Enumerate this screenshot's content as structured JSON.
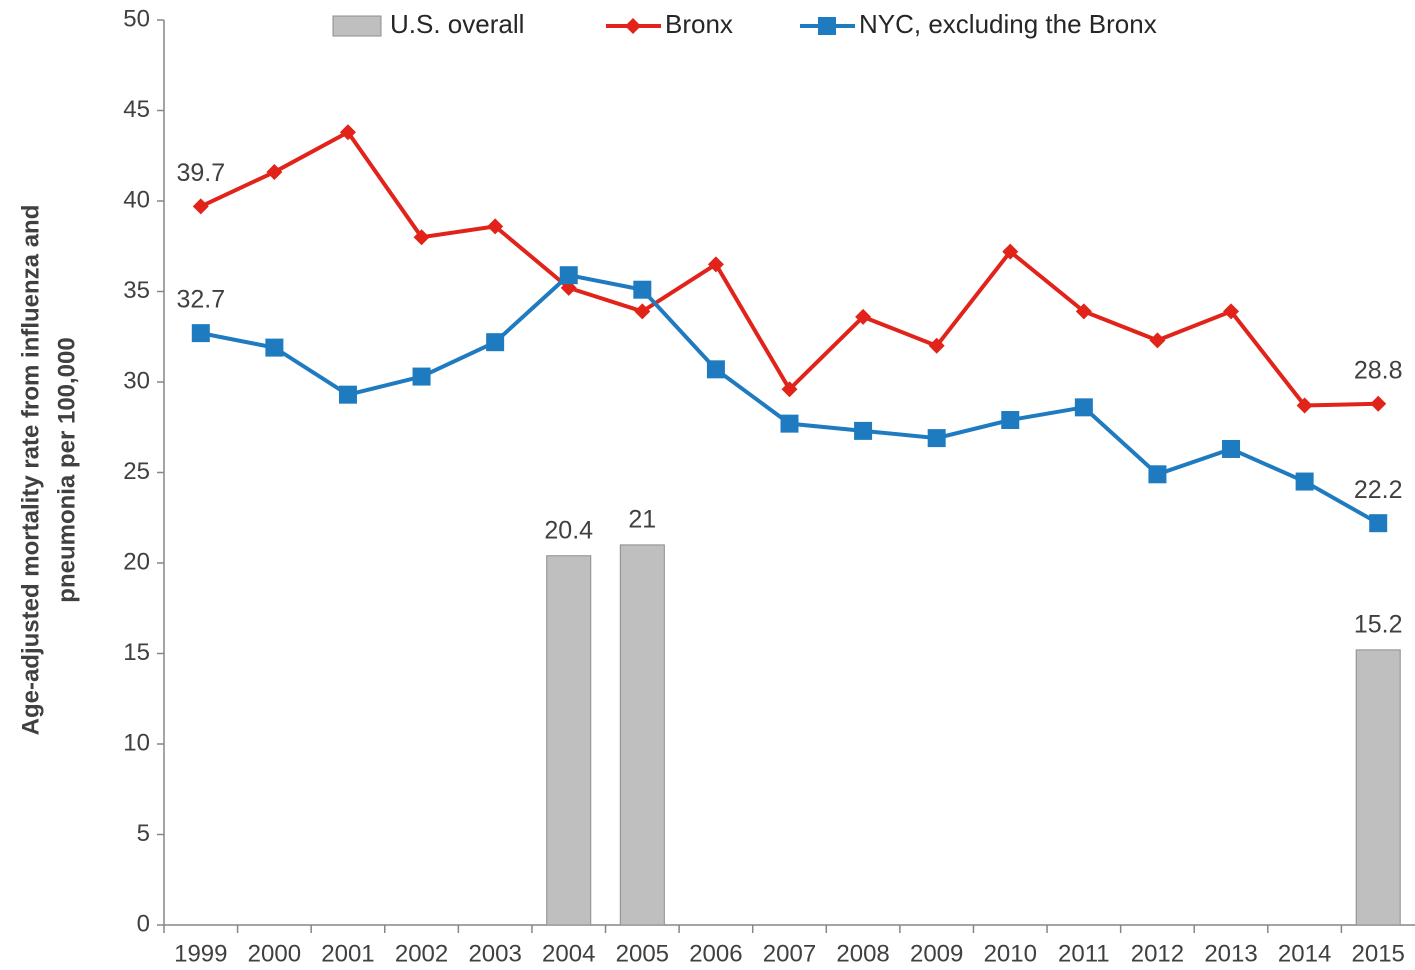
{
  "chart_data": {
    "type": "bar_line",
    "y_label": [
      "Age-adjusted mortality rate from influenza and",
      "pneumonia per 100,000"
    ],
    "categories": [
      "1999",
      "2000",
      "2001",
      "2002",
      "2003",
      "2004",
      "2005",
      "2006",
      "2007",
      "2008",
      "2009",
      "2010",
      "2011",
      "2012",
      "2013",
      "2014",
      "2015"
    ],
    "series": [
      {
        "name": "U.S. overall",
        "type": "bar",
        "color": "#bfbfbf",
        "values": [
          null,
          null,
          null,
          null,
          null,
          20.4,
          21,
          null,
          null,
          null,
          null,
          null,
          null,
          null,
          null,
          null,
          15.2
        ],
        "value_labels": [
          null,
          null,
          null,
          null,
          null,
          "20.4",
          "21",
          null,
          null,
          null,
          null,
          null,
          null,
          null,
          null,
          null,
          "15.2"
        ]
      },
      {
        "name": "Bronx",
        "type": "line",
        "marker": "diamond",
        "color": "#e2231a",
        "values": [
          39.7,
          41.6,
          43.8,
          38.0,
          38.6,
          35.2,
          33.9,
          36.5,
          29.6,
          33.6,
          32.0,
          37.2,
          33.9,
          32.3,
          33.9,
          28.7,
          28.8
        ],
        "value_labels": [
          "39.7",
          null,
          null,
          null,
          null,
          null,
          null,
          null,
          null,
          null,
          null,
          null,
          null,
          null,
          null,
          null,
          "28.8"
        ]
      },
      {
        "name": "NYC, excluding the Bronx",
        "type": "line",
        "marker": "square",
        "color": "#1f7bbf",
        "values": [
          32.7,
          31.9,
          29.3,
          30.3,
          32.2,
          35.9,
          35.1,
          30.7,
          27.7,
          27.3,
          26.9,
          27.9,
          28.6,
          24.9,
          26.3,
          24.5,
          22.2
        ],
        "value_labels": [
          "32.7",
          null,
          null,
          null,
          null,
          null,
          null,
          null,
          null,
          null,
          null,
          null,
          null,
          null,
          null,
          null,
          "22.2"
        ]
      }
    ],
    "ylim": [
      0,
      50
    ],
    "yticks": [
      0,
      5,
      10,
      15,
      20,
      25,
      30,
      35,
      40,
      45,
      50
    ],
    "grid": false,
    "legend": "top"
  }
}
